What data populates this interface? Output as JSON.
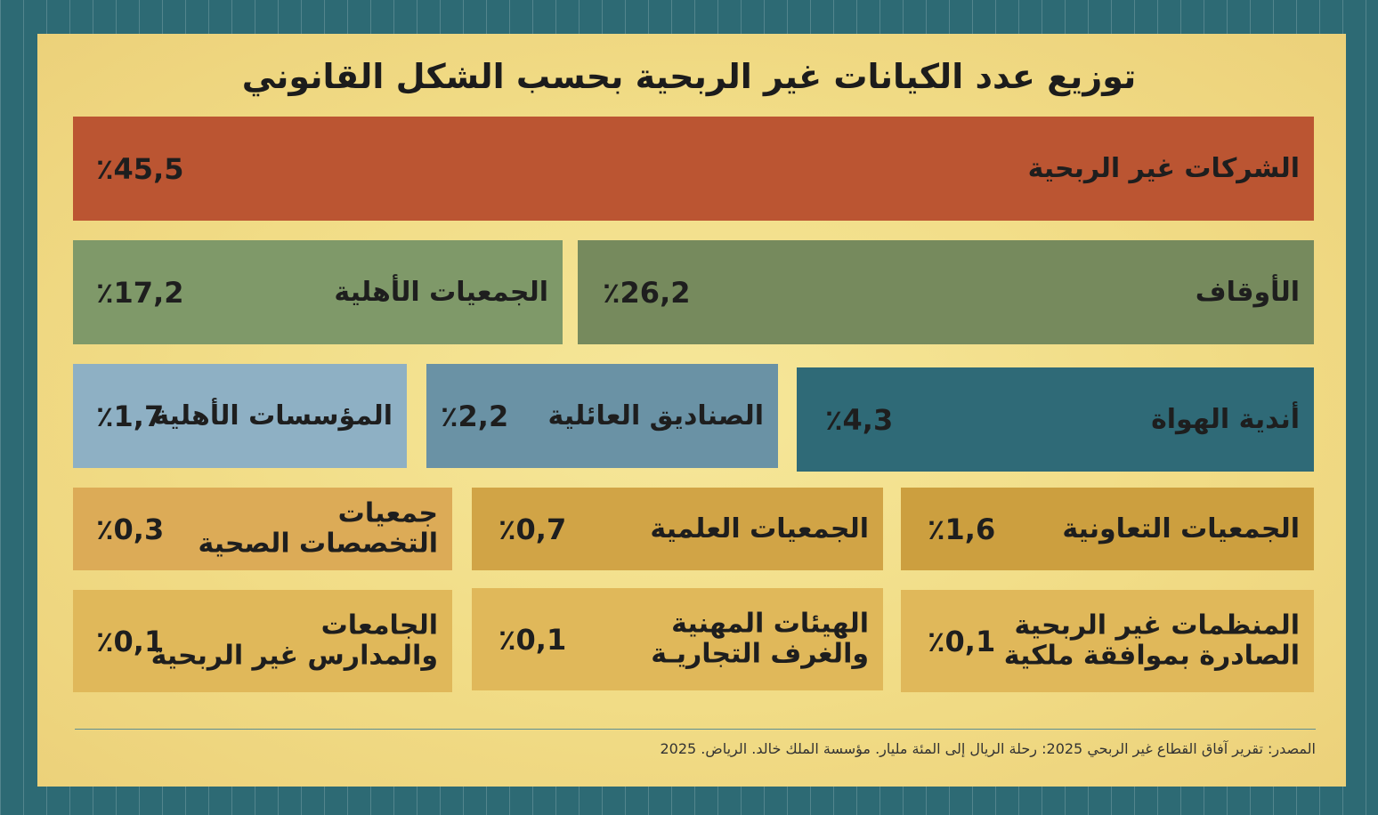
{
  "title": "توزيع عدد الكيانات غير الربحية بحسب الشكل القانوني",
  "source": "المصدر: تقرير آفاق القطاع غير الربحي 2025: رحلة الريال إلى المئة مليار. مؤسسة الملك خالد. الرياض. 2025",
  "chart_data": {
    "type": "treemap",
    "title": "توزيع عدد الكيانات غير الربحية بحسب الشكل القانوني",
    "unit": "٪",
    "items": [
      {
        "label": "الشركات غير الربحية",
        "value": 45.5,
        "display": "٪45,5",
        "color": "#bb5532"
      },
      {
        "label": "الأوقاف",
        "value": 26.2,
        "display": "٪26,2",
        "color": "#768a5d"
      },
      {
        "label": "الجمعيات الأهلية",
        "value": 17.2,
        "display": "٪17,2",
        "color": "#7f9969"
      },
      {
        "label": "أندية الهواة",
        "value": 4.3,
        "display": "٪4,3",
        "color": "#2f6a77"
      },
      {
        "label": "الصناديق العائلية",
        "value": 2.2,
        "display": "٪2,2",
        "color": "#6a92a5"
      },
      {
        "label": "المؤسسات الأهلية",
        "value": 1.7,
        "display": "٪1,7",
        "color": "#8eb0c4"
      },
      {
        "label": "الجمعيات التعاونية",
        "value": 1.6,
        "display": "٪1,6",
        "color": "#cc9f3f"
      },
      {
        "label": "الجمعيات العلمية",
        "value": 0.7,
        "display": "٪0,7",
        "color": "#d1a446"
      },
      {
        "label": "جمعيات\nالتخصصات الصحية",
        "value": 0.3,
        "display": "٪0,3",
        "color": "#dcab57"
      },
      {
        "label": "المنظمات غير الربحية\nالصادرة بموافقة ملكية",
        "value": 0.1,
        "display": "٪0,1",
        "color": "#e0b85a"
      },
      {
        "label": "الهيئات المهنية\nوالغرف التجاريـة",
        "value": 0.1,
        "display": "٪0,1",
        "color": "#e0b85a"
      },
      {
        "label": "الجامعات\nوالمدارس غير الربحية",
        "value": 0.1,
        "display": "٪0,1",
        "color": "#e0b85a"
      }
    ]
  }
}
